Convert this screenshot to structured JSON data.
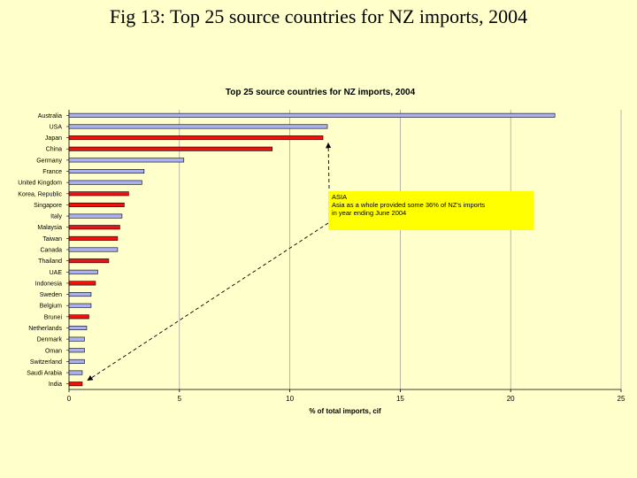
{
  "slide_title": "Fig 13: Top 25 source countries for NZ imports, 2004",
  "colors": {
    "asia": "#ee1111",
    "other": "#aab0f0",
    "bar_edge": "#000000",
    "plot_bg": "#ffffcc",
    "annotation_bg": "#ffff00"
  },
  "annotation": {
    "title": "ASIA",
    "line1": "Asia as a whole provided some 36% of NZ's imports",
    "line2": "in year ending June 2004"
  },
  "chart_data": {
    "type": "bar",
    "orientation": "horizontal",
    "title": "Top 25 source countries for NZ imports, 2004",
    "xlabel": "% of total imports, cif",
    "ylabel": "",
    "xlim": [
      0,
      25
    ],
    "xticks": [
      0,
      5,
      10,
      15,
      20,
      25
    ],
    "grid": true,
    "categories": [
      "Australia",
      "USA",
      "Japan",
      "China",
      "Germany",
      "France",
      "United Kingdom",
      "Korea, Republic",
      "Singapore",
      "Italy",
      "Malaysia",
      "Taiwan",
      "Canada",
      "Thailand",
      "UAE",
      "Indonesia",
      "Sweden",
      "Belgium",
      "Brunei",
      "Netherlands",
      "Denmark",
      "Oman",
      "Switzerland",
      "Saudi Arabia",
      "India"
    ],
    "values": [
      22.0,
      11.7,
      11.5,
      9.2,
      5.2,
      3.4,
      3.3,
      2.7,
      2.5,
      2.4,
      2.3,
      2.2,
      2.2,
      1.8,
      1.3,
      1.2,
      1.0,
      1.0,
      0.9,
      0.8,
      0.7,
      0.7,
      0.7,
      0.6,
      0.6
    ],
    "region": [
      "other",
      "other",
      "asia",
      "asia",
      "other",
      "other",
      "other",
      "asia",
      "asia",
      "other",
      "asia",
      "asia",
      "other",
      "asia",
      "other",
      "asia",
      "other",
      "other",
      "asia",
      "other",
      "other",
      "other",
      "other",
      "other",
      "asia"
    ],
    "annotation_arrows_to": [
      "Japan",
      "India"
    ]
  }
}
